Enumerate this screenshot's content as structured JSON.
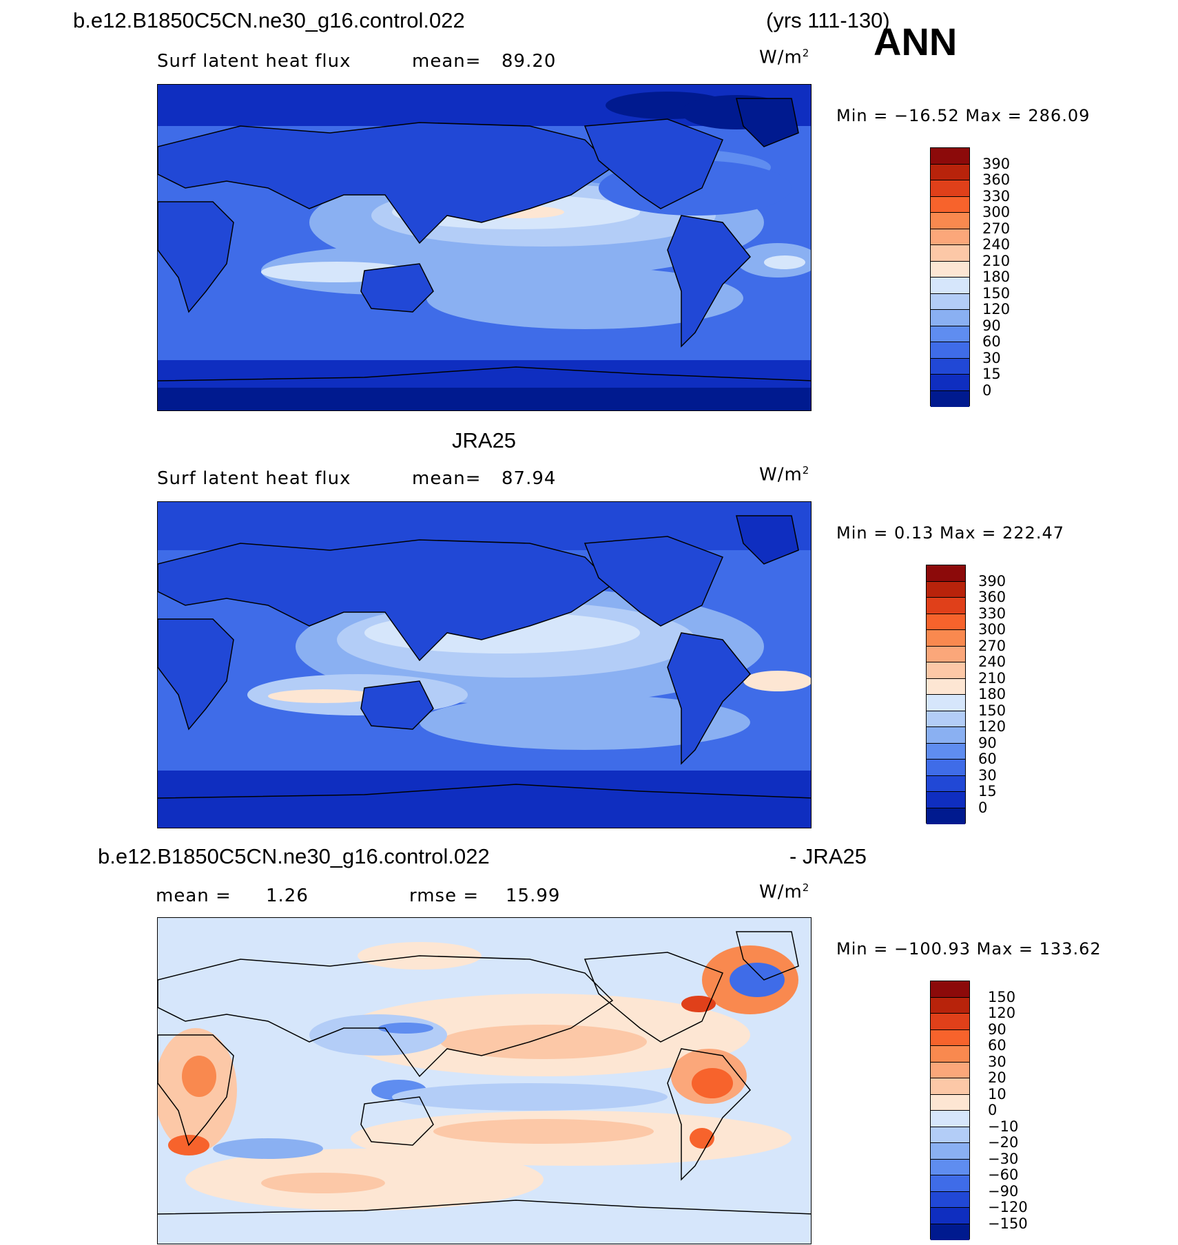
{
  "header": {
    "case_name": "b.e12.B1850C5CN.ne30_g16.control.022",
    "years": "(yrs 111-130)",
    "season": "ANN"
  },
  "panel1": {
    "variable": "Surf latent heat flux",
    "mean_label": "mean=",
    "mean_value": "89.20",
    "units": "W/m",
    "units_sup": "2",
    "minmax": "Min = −16.52 Max = 286.09",
    "colorbar_labels": [
      "390",
      "360",
      "330",
      "300",
      "270",
      "240",
      "210",
      "180",
      "150",
      "120",
      "90",
      "60",
      "30",
      "15",
      "0"
    ],
    "colorbar_colors": [
      "#8c0a0a",
      "#b8230b",
      "#e0401a",
      "#f7632c",
      "#f9894f",
      "#fba77a",
      "#fcc8a7",
      "#fde6d3",
      "#d6e6fb",
      "#b3cdf7",
      "#8ab0f2",
      "#5f8df0",
      "#3f6ce8",
      "#2148d6",
      "#0f2ec0",
      "#001a8f"
    ]
  },
  "panel2": {
    "title": "JRA25",
    "variable": "Surf latent heat flux",
    "mean_label": "mean=",
    "mean_value": "87.94",
    "units": "W/m",
    "units_sup": "2",
    "minmax": "Min =   0.13 Max = 222.47",
    "colorbar_labels": [
      "390",
      "360",
      "330",
      "300",
      "270",
      "240",
      "210",
      "180",
      "150",
      "120",
      "90",
      "60",
      "30",
      "15",
      "0"
    ]
  },
  "panel3": {
    "title_left": "b.e12.B1850C5CN.ne30_g16.control.022",
    "title_right": "- JRA25",
    "mean_label": "mean =",
    "mean_value": "1.26",
    "rmse_label": "rmse =",
    "rmse_value": "15.99",
    "units": "W/m",
    "units_sup": "2",
    "minmax": "Min = −100.93 Max = 133.62",
    "colorbar_labels": [
      "150",
      "120",
      "90",
      "60",
      "30",
      "20",
      "10",
      "0",
      "−10",
      "−20",
      "−30",
      "−60",
      "−90",
      "−120",
      "−150"
    ],
    "colorbar_colors": [
      "#8c0a0a",
      "#b8230b",
      "#e0401a",
      "#f7632c",
      "#f9894f",
      "#fba77a",
      "#fcc8a7",
      "#fde6d3",
      "#d6e6fb",
      "#b3cdf7",
      "#8ab0f2",
      "#5f8df0",
      "#3f6ce8",
      "#2148d6",
      "#0f2ec0",
      "#001a8f"
    ]
  }
}
